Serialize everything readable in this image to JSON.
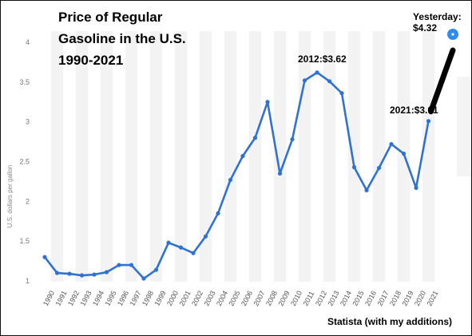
{
  "chart_data": {
    "type": "line",
    "title_lines": [
      "Price of Regular",
      "Gasoline in the U.S.",
      "1990-2021"
    ],
    "ylabel": "U.S. dollars per gallon",
    "ylim": [
      1,
      4
    ],
    "yticks": [
      "1",
      "1.5",
      "2",
      "2.5",
      "3",
      "3.5",
      "4"
    ],
    "grid": "vertical alternating bands",
    "categories": [
      "1990",
      "1991",
      "1992",
      "1993",
      "1994",
      "1995",
      "1996",
      "1997",
      "1998",
      "1999",
      "2000",
      "2001",
      "2002",
      "2003",
      "2004",
      "2005",
      "2006",
      "2007",
      "2008",
      "2009",
      "2010",
      "2011",
      "2012",
      "2013",
      "2014",
      "2015",
      "2016",
      "2017",
      "2018",
      "2019",
      "2020",
      "2021"
    ],
    "series": [
      {
        "color": "#2f72d3",
        "values": [
          1.3,
          1.1,
          1.09,
          1.07,
          1.08,
          1.11,
          1.2,
          1.2,
          1.03,
          1.14,
          1.48,
          1.42,
          1.35,
          1.56,
          1.85,
          2.27,
          2.57,
          2.8,
          3.25,
          2.35,
          2.78,
          3.52,
          3.62,
          3.51,
          3.36,
          2.43,
          2.14,
          2.42,
          2.72,
          2.6,
          2.17,
          3.01
        ]
      }
    ],
    "annotations": {
      "a2012": "2012:$3.62",
      "a2021": "2021:$3.01",
      "yesterday_label": "Yesterday:",
      "yesterday_value": "$4.32",
      "yesterday_numeric": 4.32
    },
    "source": "Statista (with my additions)"
  }
}
